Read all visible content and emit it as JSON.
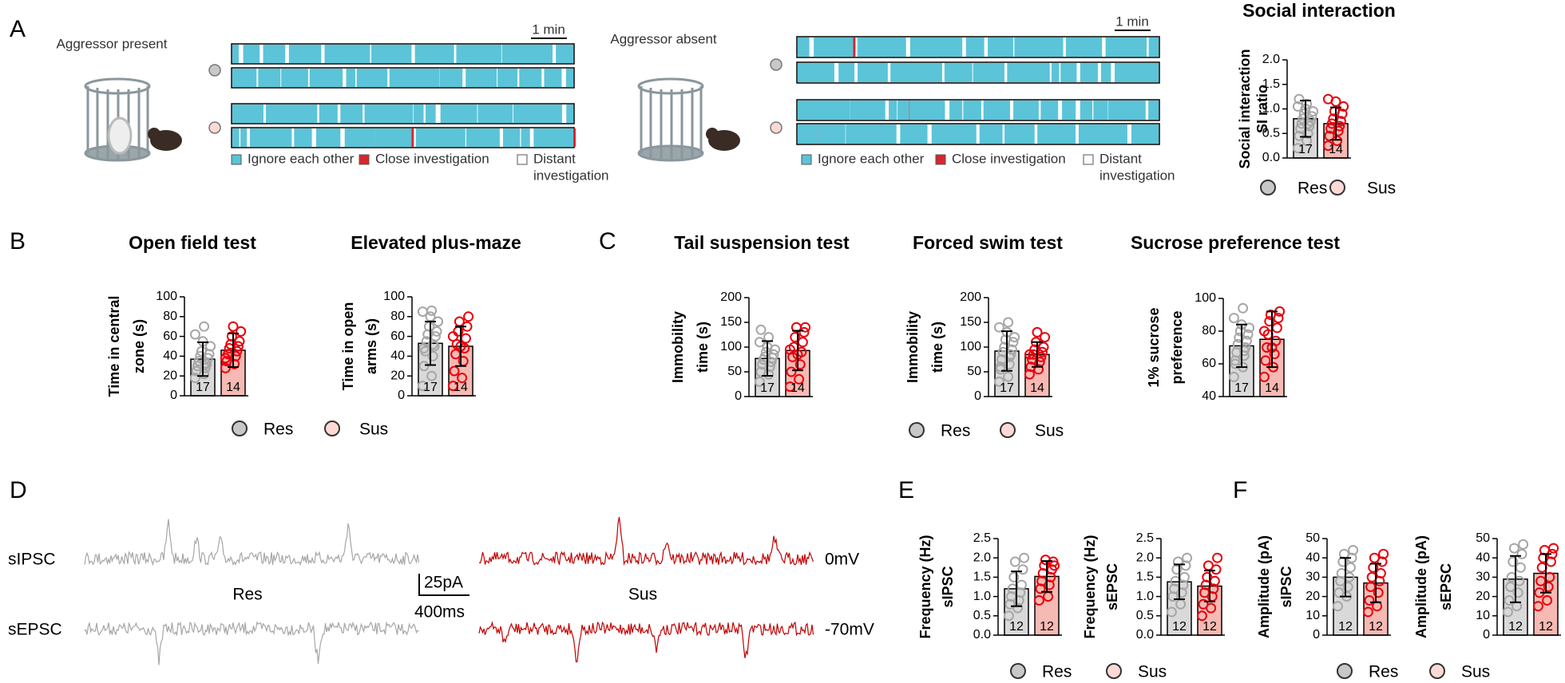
{
  "panel_labels": [
    "A",
    "B",
    "C",
    "D",
    "E",
    "F"
  ],
  "groups": [
    {
      "name": "Res",
      "fill": "#d9d9d9",
      "dot_color": "#a6a6a6",
      "legend_fill": "#c8c8c8"
    },
    {
      "name": "Sus",
      "fill": "#f6b9b3",
      "dot_color": "#e8000b",
      "legend_fill": "#fcd9d5"
    }
  ],
  "behavior": {
    "conditions": [
      "Aggressor present",
      "Aggressor absent"
    ],
    "scale_label": "1 min",
    "legend": [
      {
        "lines": [
          "Ignore each other"
        ],
        "color": "#5bc4d8"
      },
      {
        "lines": [
          "Close investigation"
        ],
        "color": "#d9262c"
      },
      {
        "lines": [
          "Distant",
          "investigation"
        ],
        "color": "#ffffff"
      }
    ]
  },
  "traces": {
    "rows": [
      "sIPSC",
      "sEPSC"
    ],
    "holding": [
      "0mV",
      "-70mV"
    ],
    "scale": [
      "25pA",
      "400ms"
    ],
    "colors": [
      "#a6a6a6",
      "#c00000"
    ]
  },
  "chart_data": [
    {
      "type": "bar",
      "title": "Social interaction",
      "ylabel": [
        "Social interaction",
        "SI ratio"
      ],
      "ylim": [
        0,
        2
      ],
      "yticks": [
        {
          "value": 0,
          "label": "0.0"
        },
        0.5,
        {
          "value": 1,
          "label": "1.0"
        },
        1.5,
        {
          "value": 2,
          "label": "2.0"
        }
      ],
      "bars": [
        {
          "value": 0.8,
          "error": 0.37,
          "n": 17,
          "points": [
            0.2,
            0.35,
            0.45,
            0.5,
            0.6,
            0.65,
            0.7,
            0.75,
            0.8,
            0.85,
            0.9,
            0.95,
            1.0,
            1.05,
            1.1,
            1.2,
            0.7
          ]
        },
        {
          "value": 0.7,
          "error": 0.33,
          "n": 14,
          "points": [
            0.25,
            0.35,
            0.45,
            0.55,
            0.6,
            0.65,
            0.7,
            0.75,
            0.8,
            0.9,
            0.95,
            1.05,
            1.15,
            1.2
          ]
        }
      ]
    },
    {
      "type": "bar",
      "title": "Open field test",
      "ylabel": [
        "Time in central",
        "zone (s)"
      ],
      "ylim": [
        0,
        100
      ],
      "yticks": [
        0,
        20,
        40,
        60,
        80,
        100
      ],
      "bars": [
        {
          "value": 37,
          "error": 17,
          "n": 17,
          "points": [
            18,
            22,
            25,
            28,
            30,
            32,
            35,
            38,
            40,
            42,
            45,
            50,
            55,
            62,
            70,
            25,
            33
          ]
        },
        {
          "value": 46,
          "error": 17,
          "n": 14,
          "points": [
            28,
            32,
            35,
            40,
            42,
            45,
            48,
            50,
            52,
            55,
            60,
            65,
            70,
            38
          ]
        }
      ]
    },
    {
      "type": "bar",
      "title": "Elevated plus-maze",
      "ylabel": [
        "Time in open",
        "arms (s)"
      ],
      "ylim": [
        0,
        100
      ],
      "yticks": [
        0,
        20,
        40,
        60,
        80,
        100
      ],
      "bars": [
        {
          "value": 53,
          "error": 22,
          "n": 17,
          "points": [
            10,
            20,
            30,
            40,
            45,
            50,
            55,
            60,
            62,
            65,
            70,
            75,
            80,
            85,
            86,
            48,
            52
          ]
        },
        {
          "value": 50,
          "error": 20,
          "n": 14,
          "points": [
            10,
            18,
            25,
            35,
            42,
            48,
            52,
            58,
            65,
            70,
            75,
            80,
            50,
            60
          ]
        }
      ]
    },
    {
      "type": "bar",
      "title": "Tail suspension test",
      "ylabel": [
        "Immobility",
        "time (s)"
      ],
      "ylim": [
        0,
        200
      ],
      "yticks": [
        0,
        50,
        100,
        150,
        200
      ],
      "bars": [
        {
          "value": 77,
          "error": 35,
          "n": 17,
          "points": [
            30,
            45,
            50,
            60,
            65,
            70,
            75,
            78,
            80,
            85,
            90,
            95,
            100,
            110,
            120,
            135,
            60
          ]
        },
        {
          "value": 93,
          "error": 40,
          "n": 14,
          "points": [
            20,
            35,
            50,
            65,
            80,
            90,
            100,
            110,
            120,
            130,
            140,
            140,
            85,
            95
          ]
        }
      ]
    },
    {
      "type": "bar",
      "title": "Forced swim test",
      "ylabel": [
        "Immobility",
        "time (s)"
      ],
      "ylim": [
        0,
        200
      ],
      "yticks": [
        0,
        50,
        100,
        150,
        200
      ],
      "bars": [
        {
          "value": 92,
          "error": 40,
          "n": 17,
          "points": [
            30,
            40,
            55,
            65,
            75,
            85,
            90,
            95,
            100,
            110,
            115,
            120,
            130,
            140,
            150,
            60,
            80
          ]
        },
        {
          "value": 85,
          "error": 25,
          "n": 14,
          "points": [
            45,
            55,
            60,
            70,
            75,
            80,
            85,
            90,
            95,
            100,
            110,
            120,
            130,
            85
          ]
        }
      ]
    },
    {
      "type": "bar",
      "title": "Sucrose preference test",
      "ylabel": [
        "1% sucrose",
        "preference"
      ],
      "ylim": [
        40,
        100
      ],
      "yticks": [
        40,
        60,
        80,
        100
      ],
      "bars": [
        {
          "value": 71,
          "error": 13,
          "n": 17,
          "points": [
            52,
            58,
            62,
            65,
            67,
            70,
            72,
            74,
            76,
            78,
            80,
            82,
            84,
            88,
            94,
            60,
            68
          ]
        },
        {
          "value": 75,
          "error": 17,
          "n": 14,
          "points": [
            52,
            58,
            62,
            66,
            70,
            74,
            78,
            82,
            86,
            88,
            90,
            92,
            70,
            80
          ]
        }
      ]
    },
    {
      "type": "bar",
      "ylabel": [
        "Frequency (Hz)",
        "sIPSC"
      ],
      "ylim": [
        0,
        2.5
      ],
      "yticks": [
        {
          "value": 0,
          "label": "0.0"
        },
        0.5,
        {
          "value": 1,
          "label": "1.0"
        },
        1.5,
        {
          "value": 2,
          "label": "2.0"
        },
        2.5
      ],
      "bars": [
        {
          "value": 1.2,
          "error": 0.45,
          "n": 12,
          "points": [
            0.5,
            0.7,
            0.8,
            0.9,
            1.0,
            1.1,
            1.2,
            1.3,
            1.5,
            1.7,
            1.9,
            2.0
          ]
        },
        {
          "value": 1.52,
          "error": 0.4,
          "n": 12,
          "points": [
            0.9,
            1.0,
            1.2,
            1.3,
            1.4,
            1.5,
            1.6,
            1.7,
            1.8,
            1.9,
            1.95,
            1.8
          ]
        }
      ]
    },
    {
      "type": "bar",
      "ylabel": [
        "Frequency (Hz)",
        "sEPSC"
      ],
      "ylim": [
        0,
        2.5
      ],
      "yticks": [
        {
          "value": 0,
          "label": "0.0"
        },
        0.5,
        {
          "value": 1,
          "label": "1.0"
        },
        1.5,
        {
          "value": 2,
          "label": "2.0"
        },
        2.5
      ],
      "bars": [
        {
          "value": 1.38,
          "error": 0.45,
          "n": 12,
          "points": [
            0.6,
            0.8,
            1.0,
            1.1,
            1.2,
            1.3,
            1.4,
            1.5,
            1.7,
            1.8,
            1.9,
            2.0
          ]
        },
        {
          "value": 1.27,
          "error": 0.4,
          "n": 12,
          "points": [
            0.5,
            0.7,
            0.8,
            1.0,
            1.1,
            1.2,
            1.3,
            1.4,
            1.5,
            1.7,
            1.8,
            2.0
          ]
        }
      ]
    },
    {
      "type": "bar",
      "ylabel": [
        "Amplitude (pA)",
        "sIPSC"
      ],
      "ylim": [
        0,
        50
      ],
      "yticks": [
        0,
        10,
        20,
        30,
        40,
        50
      ],
      "bars": [
        {
          "value": 30,
          "error": 10,
          "n": 12,
          "points": [
            15,
            20,
            22,
            25,
            28,
            30,
            32,
            35,
            38,
            40,
            42,
            44
          ]
        },
        {
          "value": 27,
          "error": 10,
          "n": 12,
          "points": [
            12,
            15,
            18,
            22,
            25,
            28,
            30,
            32,
            35,
            38,
            40,
            42
          ]
        }
      ]
    },
    {
      "type": "bar",
      "ylabel": [
        "Amplitude (pA)",
        "sEPSC"
      ],
      "ylim": [
        0,
        50
      ],
      "yticks": [
        0,
        10,
        20,
        30,
        40,
        50
      ],
      "bars": [
        {
          "value": 29,
          "error": 12,
          "n": 12,
          "points": [
            12,
            15,
            18,
            22,
            25,
            28,
            30,
            35,
            38,
            42,
            45,
            47
          ]
        },
        {
          "value": 32,
          "error": 10,
          "n": 12,
          "points": [
            15,
            18,
            22,
            25,
            28,
            30,
            35,
            38,
            40,
            42,
            44,
            45
          ]
        }
      ]
    }
  ]
}
